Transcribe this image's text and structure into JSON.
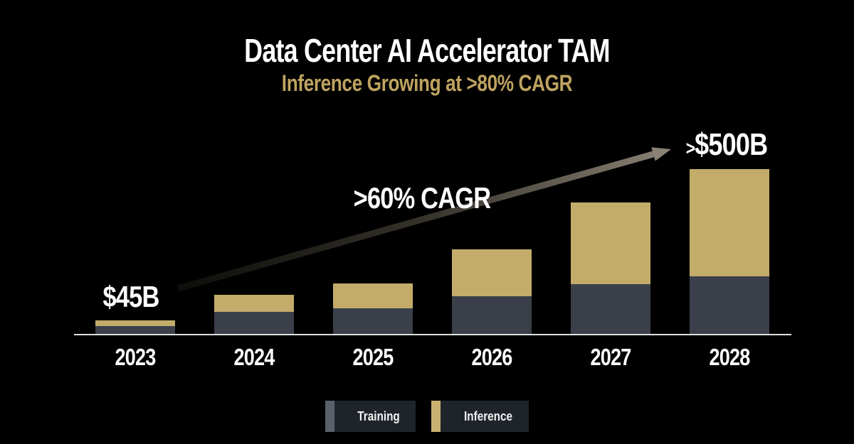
{
  "slide": {
    "background": "#000000",
    "title": "Data Center AI Accelerator TAM",
    "subtitle": "Inference Growing at >80% CAGR",
    "title_color": "#FFFFFF",
    "subtitle_color": "#BEA360"
  },
  "chart_data": {
    "type": "bar",
    "stacked": true,
    "title": "Data Center AI Accelerator TAM",
    "subtitle": "Inference Growing at >80% CAGR",
    "unit": "USD billions",
    "categories": [
      "2023",
      "2024",
      "2025",
      "2026",
      "2027",
      "2028"
    ],
    "series": [
      {
        "name": "Training",
        "color": "#3A3F4A",
        "values": [
          27,
          72,
          83,
          121,
          160,
          185
        ]
      },
      {
        "name": "Inference",
        "color": "#C3AB6A",
        "values": [
          18,
          54,
          79,
          149,
          259,
          340
        ]
      }
    ],
    "estimated_totals": [
      45,
      126,
      162,
      270,
      419,
      525
    ],
    "ylim": [
      0,
      560
    ],
    "gridlines": false,
    "xlabel": "",
    "ylabel": "",
    "legend_position": "bottom",
    "annotations": [
      {
        "text": "$45B",
        "anchor": "above-2023-bar"
      },
      {
        "text": ">60% CAGR",
        "anchor": "above-growth-arrow"
      },
      {
        "text": ">$500B",
        "anchor": "above-2028-bar"
      }
    ]
  },
  "annotations": {
    "start_value": "$45B",
    "cagr": ">60% CAGR",
    "end_prefix": ">",
    "end_value": "$500B"
  },
  "legend": {
    "chip_background": "#1F242B",
    "items": [
      {
        "label": "Training",
        "swatch_color": "#5A616B"
      },
      {
        "label": "Inference",
        "swatch_color": "#C9B172"
      }
    ]
  },
  "axis": {
    "line_color": "#DFDFDF",
    "label_color": "#FFFFFF"
  }
}
